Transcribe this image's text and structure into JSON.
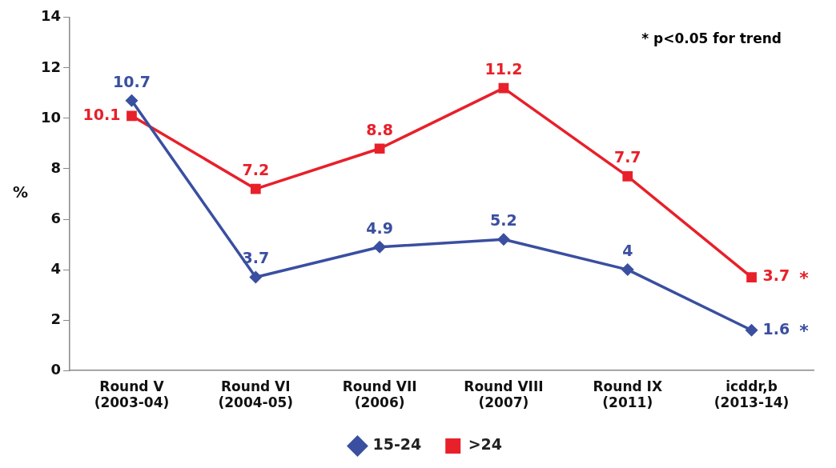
{
  "chart_data": {
    "type": "line",
    "ylabel": "%",
    "categories": [
      "Round V (2003-04)",
      "Round VI (2004-05)",
      "Round VII (2006)",
      "Round VIII (2007)",
      "Round IX (2011)",
      "icddr,b (2013-14)"
    ],
    "series": [
      {
        "name": "15-24",
        "color": "#3a4fa0",
        "marker": "diamond",
        "values": [
          10.7,
          3.7,
          4.9,
          5.2,
          4,
          1.6
        ]
      },
      {
        "name": ">24",
        "color": "#e8202a",
        "marker": "square",
        "values": [
          10.1,
          7.2,
          8.8,
          11.2,
          7.7,
          3.7
        ]
      }
    ],
    "ylim": [
      0,
      14
    ],
    "yticks": [
      0,
      2,
      4,
      6,
      8,
      10,
      12,
      14
    ],
    "grid": false,
    "legend": "bottom",
    "data_labels": true,
    "line_style": "solid",
    "annotations": [
      "* p<0.05 for trend",
      {
        "text": "*",
        "x": "icddr,b (2013-14)",
        "y": 1.6
      },
      {
        "text": "*",
        "x": "icddr,b (2013-14)",
        "y": 3.7
      }
    ]
  }
}
